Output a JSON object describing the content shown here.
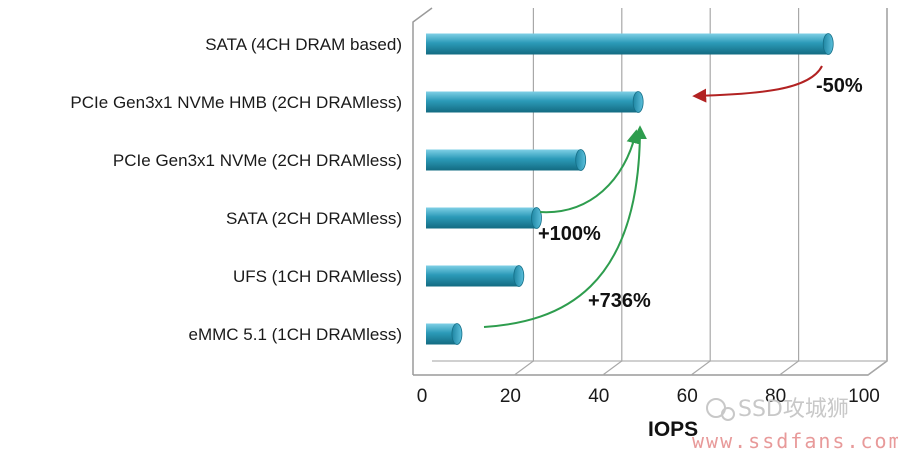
{
  "chart_data": {
    "type": "bar",
    "orientation": "horizontal",
    "categories": [
      "SATA (4CH DRAM based)",
      "PCIe Gen3x1 NVMe HMB (2CH DRAMless)",
      "PCIe Gen3x1 NVMe (2CH DRAMless)",
      "SATA (2CH DRAMless)",
      "UFS (1CH DRAMless)",
      "eMMC 5.1 (1CH DRAMless)"
    ],
    "values": [
      91,
      48,
      35,
      25,
      21,
      7
    ],
    "xlabel": "IOPS",
    "xlim": [
      0,
      100
    ],
    "xticks": [
      "0",
      "20",
      "40",
      "60",
      "80",
      "100"
    ],
    "grid": "vertical",
    "bar_color": "#2b9ab8",
    "annotations": [
      {
        "text": "-50%",
        "color": "#b22222"
      },
      {
        "text": "+100%",
        "color": "#2e9d4e"
      },
      {
        "text": "+736%",
        "color": "#2e9d4e"
      }
    ]
  },
  "watermark": {
    "brand": "SSD攻城狮",
    "url": "www.ssdfans.com"
  }
}
